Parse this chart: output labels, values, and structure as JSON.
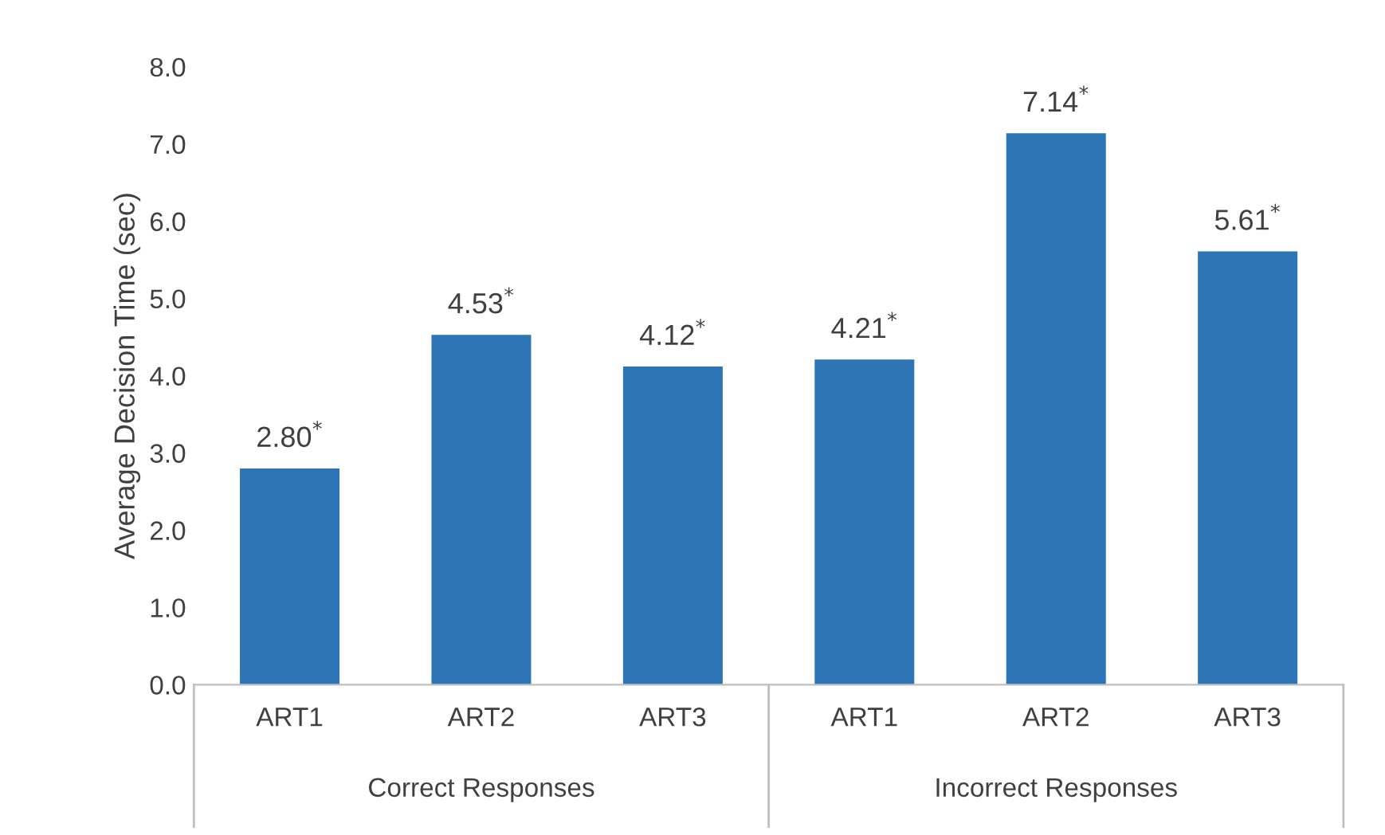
{
  "chart_data": {
    "type": "bar",
    "ylabel": "Average Decision Time (sec)",
    "categories": [
      "ART1",
      "ART2",
      "ART3",
      "ART1",
      "ART2",
      "ART3"
    ],
    "series": [
      {
        "color": "#2e75b6",
        "values": [
          2.8,
          4.53,
          4.12,
          4.21,
          7.14,
          5.61
        ],
        "value_labels": [
          "2.80$^{*}$",
          "4.53$^{*}$",
          "4.12$^{*}$",
          "4.21$^{*}$",
          "7.14$^{*}$",
          "5.61$^{*}$"
        ]
      }
    ],
    "ylim": [
      0,
      8
    ],
    "yticks": [
      {
        "value": 0,
        "label": "0.0"
      },
      {
        "value": 1,
        "label": "1.0"
      },
      {
        "value": 2,
        "label": "2.0"
      },
      {
        "value": 3,
        "label": "3.0"
      },
      {
        "value": 4,
        "label": "4.0"
      },
      {
        "value": 5,
        "label": "5.0"
      },
      {
        "value": 6,
        "label": "6.0"
      },
      {
        "value": 7,
        "label": "7.0"
      },
      {
        "value": 8,
        "label": "8.0"
      }
    ],
    "annotations": [
      "Correct Responses",
      "Incorrect Responses"
    ],
    "grid": false,
    "legend": false
  }
}
